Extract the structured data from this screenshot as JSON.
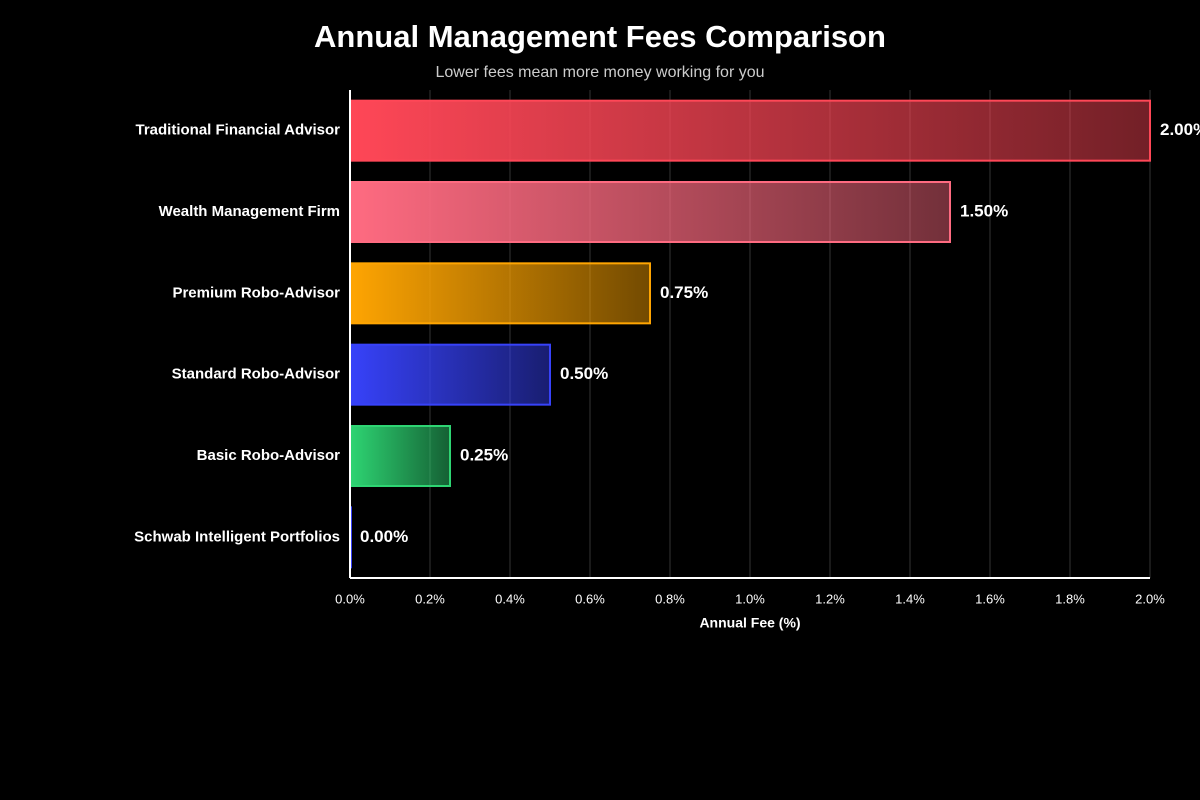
{
  "chart_data": {
    "type": "bar",
    "orientation": "horizontal",
    "title": "Annual Management Fees Comparison",
    "subtitle": "Lower fees mean more money working for you",
    "x_label": "Annual Fee (%)",
    "categories": [
      "Traditional Financial Advisor",
      "Wealth Management Firm",
      "Premium Robo-Advisor",
      "Standard Robo-Advisor",
      "Basic Robo-Advisor",
      "Schwab Intelligent Portfolios"
    ],
    "values": [
      2.0,
      1.5,
      0.75,
      0.5,
      0.25,
      0.0
    ],
    "value_labels": [
      "2.00%",
      "1.50%",
      "0.75%",
      "0.50%",
      "0.25%",
      "0.00%"
    ],
    "colors": [
      "#ff4757",
      "#ff6b81",
      "#ffa502",
      "#3742fa",
      "#2ed573",
      "#3742fa"
    ],
    "xlim": [
      0,
      2.0
    ],
    "xticks": [
      {
        "value": 0,
        "label": "0.0%"
      },
      {
        "value": 0.2,
        "label": "0.2%"
      },
      {
        "value": 0.4,
        "label": "0.4%"
      },
      {
        "value": 0.6,
        "label": "0.6%"
      },
      {
        "value": 0.8,
        "label": "0.8%"
      },
      {
        "value": 1.0,
        "label": "1.0%"
      },
      {
        "value": 1.2,
        "label": "1.2%"
      },
      {
        "value": 1.4,
        "label": "1.4%"
      },
      {
        "value": 1.6,
        "label": "1.6%"
      },
      {
        "value": 1.8,
        "label": "1.8%"
      },
      {
        "value": 2.0,
        "label": "2.0%"
      }
    ],
    "grid": true
  }
}
